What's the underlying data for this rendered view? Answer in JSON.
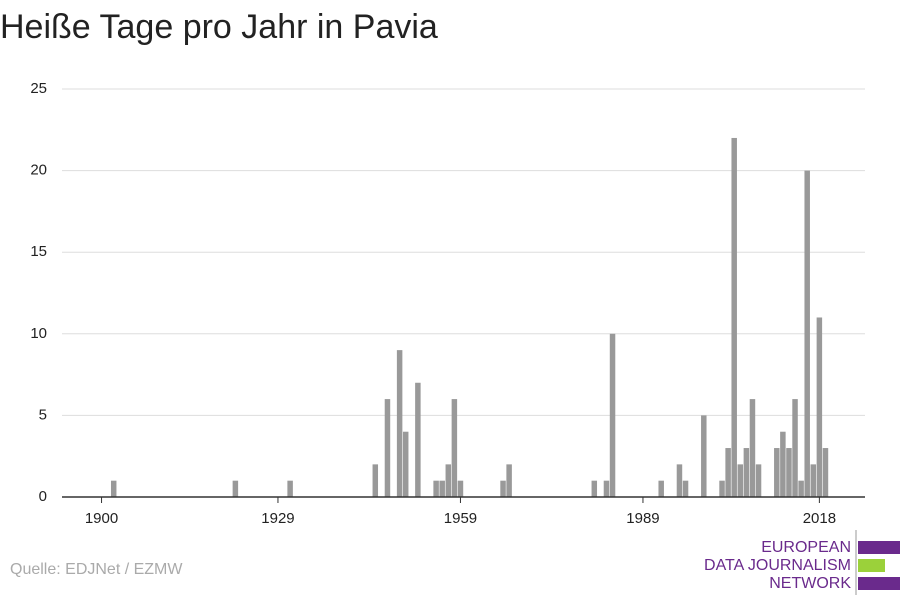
{
  "chart_data": {
    "type": "bar",
    "title": "Heiße Tage pro Jahr in Pavia",
    "source": "Quelle: EDJNet / EZMW",
    "logo": [
      "EUROPEAN",
      "DATA JOURNALISM",
      "NETWORK"
    ],
    "x": [
      1902,
      1922,
      1931,
      1945,
      1947,
      1949,
      1950,
      1952,
      1955,
      1956,
      1957,
      1958,
      1959,
      1966,
      1967,
      1981,
      1983,
      1984,
      1992,
      1995,
      1996,
      1999,
      2002,
      2003,
      2004,
      2005,
      2006,
      2007,
      2008,
      2011,
      2012,
      2013,
      2014,
      2015,
      2016,
      2017,
      2018,
      2019
    ],
    "values": [
      1,
      1,
      1,
      2,
      6,
      9,
      4,
      7,
      1,
      1,
      2,
      6,
      1,
      1,
      2,
      1,
      1,
      10,
      1,
      2,
      1,
      5,
      1,
      3,
      22,
      2,
      3,
      6,
      2,
      3,
      4,
      3,
      6,
      1,
      20,
      2,
      11,
      3
    ],
    "color": "#999999",
    "xlim": [
      1893.5,
      2025.5
    ],
    "xticks": [
      1900,
      1929,
      1959,
      1989,
      2018
    ],
    "ylim": [
      0,
      25
    ],
    "yticks": [
      0,
      5,
      10,
      15,
      20,
      25
    ],
    "grid": true
  }
}
